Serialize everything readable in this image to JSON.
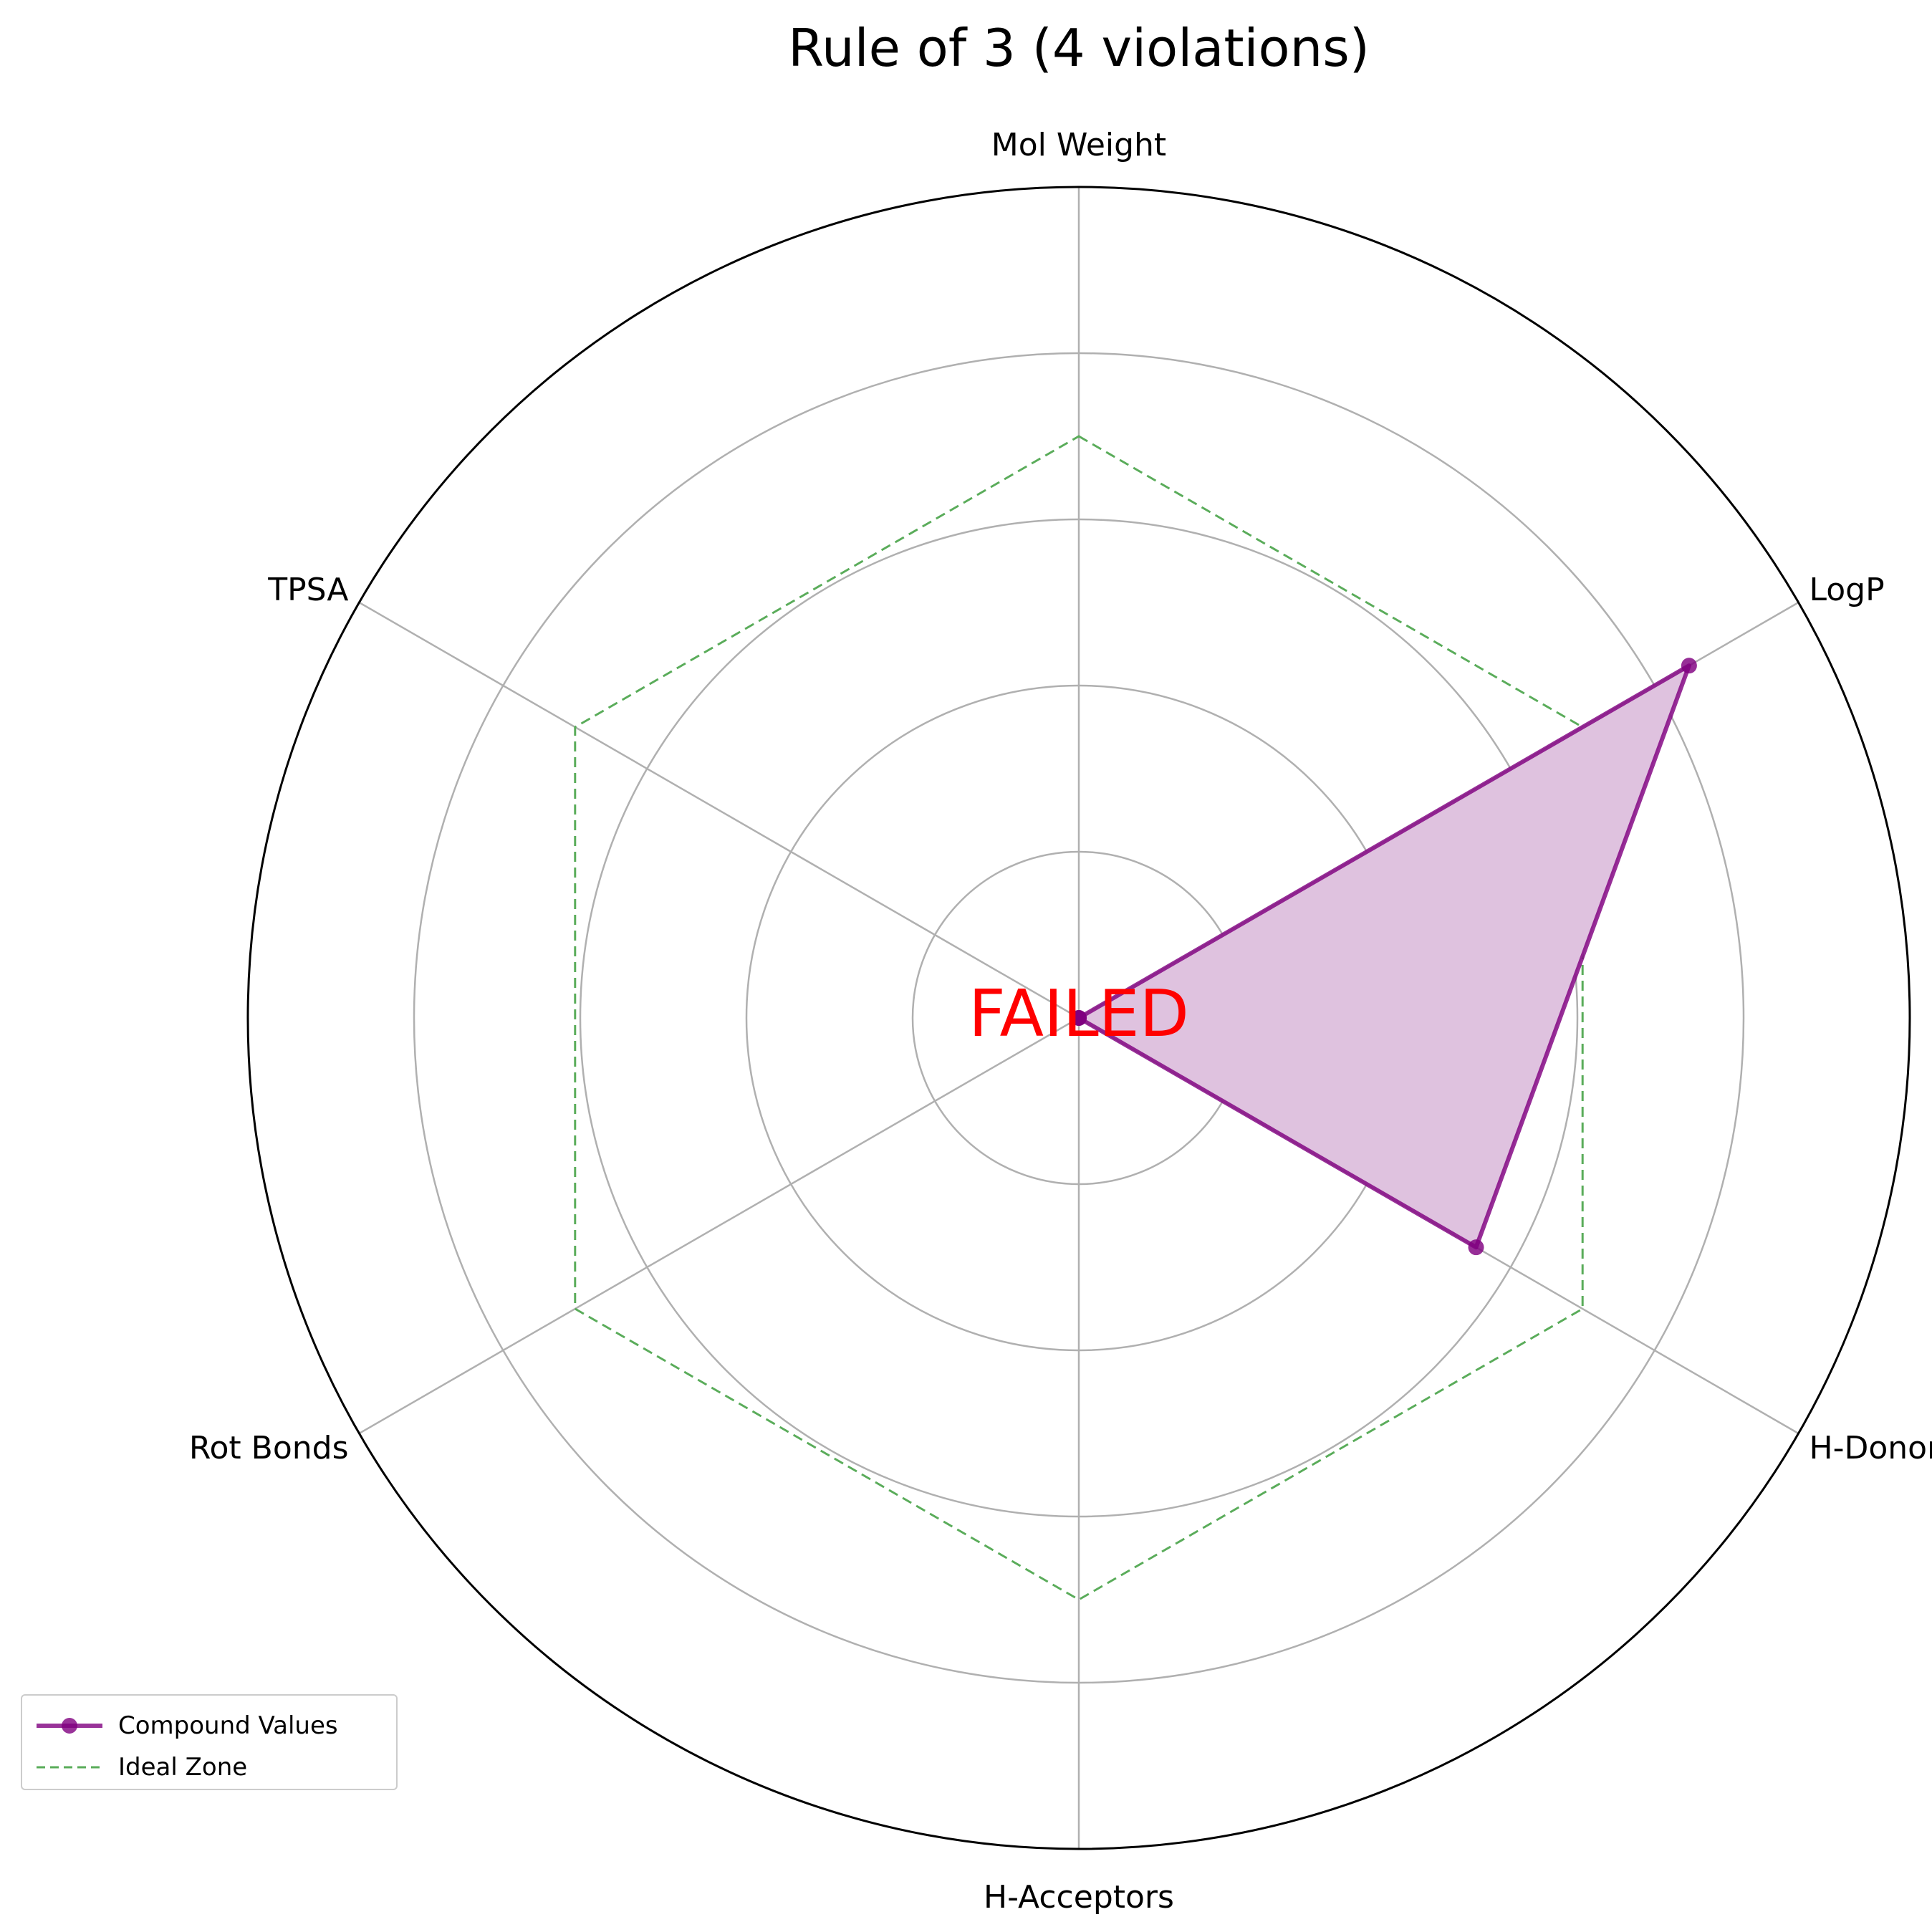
{
  "chart_data": {
    "type": "radar",
    "title": "Rule of 3 (4 violations)",
    "categories": [
      "Mol Weight",
      "LogP",
      "H-Donors",
      "H-Acceptors",
      "Rot Bonds",
      "TPSA"
    ],
    "rlim": [
      0,
      1.25
    ],
    "rings": [
      0.25,
      0.5,
      0.75,
      1.0
    ],
    "grid": true,
    "series": [
      {
        "name": "Compound Values",
        "values": [
          0.0,
          1.06,
          0.69,
          0.0,
          0.0,
          0.0
        ],
        "color": "#800080",
        "fill": "#dfc2df",
        "marker": "circle"
      },
      {
        "name": "Ideal Zone",
        "values": [
          0.875,
          0.875,
          0.875,
          0.875,
          0.875,
          0.875
        ],
        "color": "#5aac5a",
        "style": "dashed"
      }
    ],
    "center_label": "FAILED",
    "center_label_color": "#ff0000",
    "legend_position": "lower-left"
  }
}
